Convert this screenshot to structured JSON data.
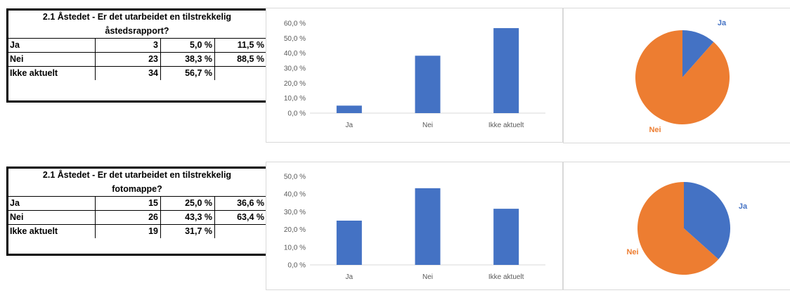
{
  "colors": {
    "ja": "#4472c4",
    "nei": "#ed7d31",
    "grid": "#d9d9d9",
    "tick": "#595959"
  },
  "sections": [
    {
      "title_line1": "2.1 Åstedet - Er det utarbeidet en tilstrekkelig",
      "title_line2": "åstedsrapport?",
      "rows": [
        {
          "label": "Ja",
          "count": "3",
          "pct": "5,0 %",
          "pct2": "11,5 %"
        },
        {
          "label": "Nei",
          "count": "23",
          "pct": "38,3 %",
          "pct2": "88,5 %"
        },
        {
          "label": "Ikke aktuelt",
          "count": "34",
          "pct": "56,7 %",
          "pct2": ""
        }
      ]
    },
    {
      "title_line1": "2.1 Åstedet - Er det utarbeidet en tilstrekkelig",
      "title_line2": "fotomappe?",
      "rows": [
        {
          "label": "Ja",
          "count": "15",
          "pct": "25,0 %",
          "pct2": "36,6 %"
        },
        {
          "label": "Nei",
          "count": "26",
          "pct": "43,3 %",
          "pct2": "63,4 %"
        },
        {
          "label": "Ikke aktuelt",
          "count": "19",
          "pct": "31,7 %",
          "pct2": ""
        }
      ]
    }
  ],
  "chart_data": [
    {
      "type": "bar",
      "categories": [
        "Ja",
        "Nei",
        "Ikke aktuelt"
      ],
      "values": [
        5.0,
        38.3,
        56.7
      ],
      "ylim": [
        0,
        60
      ],
      "yticks": [
        "0,0 %",
        "10,0 %",
        "20,0 %",
        "30,0 %",
        "40,0 %",
        "50,0 %",
        "60,0 %"
      ],
      "grid": false,
      "legend": "none"
    },
    {
      "type": "pie",
      "categories": [
        "Ja",
        "Nei"
      ],
      "values": [
        11.5,
        88.5
      ],
      "labels": [
        "Ja",
        "Nei"
      ]
    },
    {
      "type": "bar",
      "categories": [
        "Ja",
        "Nei",
        "Ikke aktuelt"
      ],
      "values": [
        25.0,
        43.3,
        31.7
      ],
      "ylim": [
        0,
        50
      ],
      "yticks": [
        "0,0 %",
        "10,0 %",
        "20,0 %",
        "30,0 %",
        "40,0 %",
        "50,0 %"
      ],
      "grid": false,
      "legend": "none"
    },
    {
      "type": "pie",
      "categories": [
        "Ja",
        "Nei"
      ],
      "values": [
        36.6,
        63.4
      ],
      "labels": [
        "Ja",
        "Nei"
      ]
    }
  ]
}
